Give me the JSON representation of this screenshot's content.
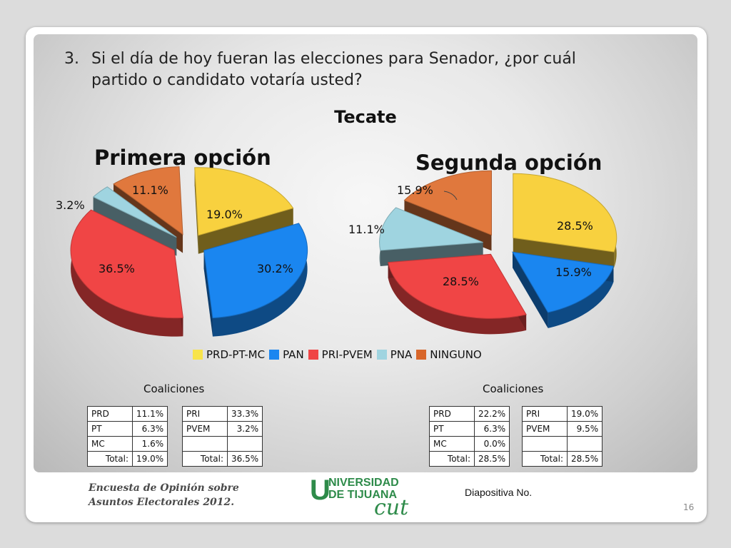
{
  "question": {
    "number": "3.",
    "line1": "Si el día de hoy fueran las elecciones para Senador, ¿por cuál",
    "line2": "partido o candidato votaría usted?"
  },
  "subtitle": "Tecate",
  "colors": {
    "PRD-PT-MC": "#f8d13f",
    "PAN": "#1a86f0",
    "PRI-PVEM": "#f04545",
    "PNA": "#9fd4e0",
    "NINGUNO": "#e0783d"
  },
  "chart_data": [
    {
      "type": "pie",
      "title": "Primera opción",
      "categories": [
        "PRD-PT-MC",
        "PAN",
        "PRI-PVEM",
        "PNA",
        "NINGUNO"
      ],
      "values": [
        19.0,
        30.2,
        36.5,
        3.2,
        11.1
      ],
      "labels": [
        "19.0%",
        "30.2%",
        "36.5%",
        "3.2%",
        "11.1%"
      ],
      "exploded": true,
      "legend": "bottom"
    },
    {
      "type": "pie",
      "title": "Segunda opción",
      "categories": [
        "PRD-PT-MC",
        "PAN",
        "PRI-PVEM",
        "PNA",
        "NINGUNO"
      ],
      "values": [
        28.5,
        15.9,
        28.5,
        11.1,
        15.9
      ],
      "labels": [
        "28.5%",
        "15.9%",
        "28.5%",
        "11.1%",
        "15.9%"
      ],
      "exploded": true,
      "legend": "bottom"
    }
  ],
  "legend": [
    "PRD-PT-MC",
    "PAN",
    "PRI-PVEM",
    "PNA",
    "NINGUNO"
  ],
  "coaliciones_label": "Coaliciones",
  "tables": {
    "t1": {
      "rows": [
        [
          "PRD",
          "11.1%"
        ],
        [
          "PT",
          "6.3%"
        ],
        [
          "MC",
          "1.6%"
        ]
      ],
      "total_label": "Total:",
      "total": "19.0%"
    },
    "t2": {
      "rows": [
        [
          "PRI",
          "33.3%"
        ],
        [
          "PVEM",
          "3.2%"
        ],
        [
          "",
          ""
        ]
      ],
      "total_label": "Total:",
      "total": "36.5%"
    },
    "t3": {
      "rows": [
        [
          "PRD",
          "22.2%"
        ],
        [
          "PT",
          "6.3%"
        ],
        [
          "MC",
          "0.0%"
        ]
      ],
      "total_label": "Total:",
      "total": "28.5%"
    },
    "t4": {
      "rows": [
        [
          "PRI",
          "19.0%"
        ],
        [
          "PVEM",
          "9.5%"
        ],
        [
          "",
          ""
        ]
      ],
      "total_label": "Total:",
      "total": "28.5%"
    }
  },
  "footer": {
    "line1": "Encuesta de Opinión sobre",
    "line2": "Asuntos Electorales   2012.",
    "logo_line1": "NIVERSIDAD",
    "logo_line2": "DE TIJUANA",
    "logo_letter": "U",
    "logo_cut": "cut",
    "diapositiva": "Diapositiva No.",
    "page": "16"
  }
}
